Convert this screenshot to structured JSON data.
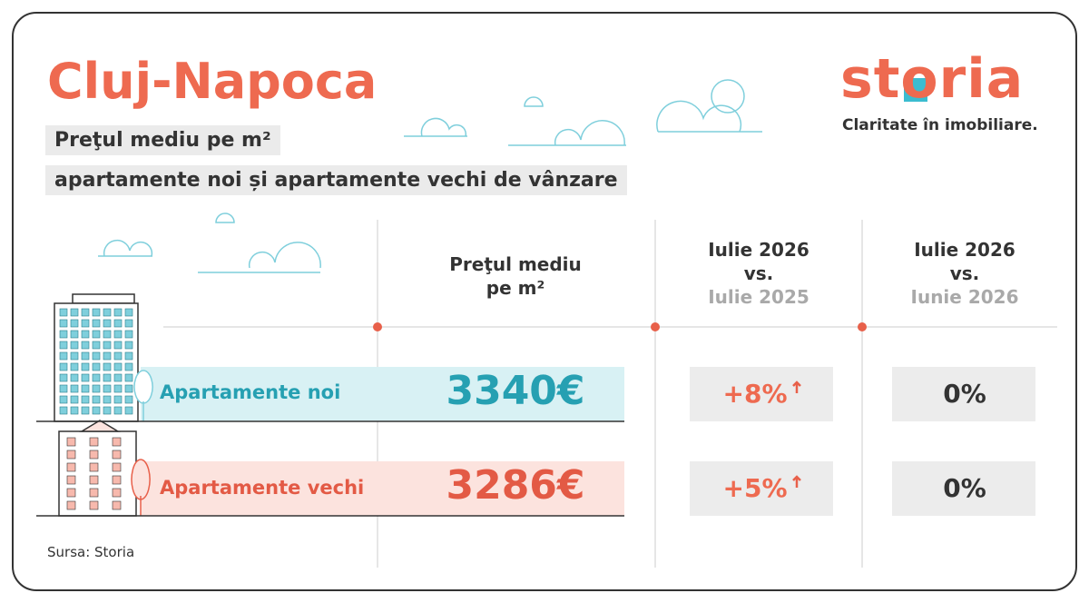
{
  "header": {
    "title": "Cluj-Napoca",
    "subtitle": [
      "Preţul mediu pe m²",
      "apartamente noi și apartamente vechi de vânzare"
    ]
  },
  "logo": {
    "name": "storia",
    "tagline": "Claritate în imobiliare."
  },
  "table": {
    "columns": [
      [
        "Preţul mediu",
        "pe m²"
      ],
      [
        "Iulie 2026",
        "vs.",
        "Iulie 2025"
      ],
      [
        "Iulie 2026",
        "vs.",
        "Iunie 2026"
      ]
    ],
    "rows": [
      [
        "Apartamente noi",
        "3340€",
        "+8%",
        "0%"
      ],
      [
        "Apartamente vechi",
        "3286€",
        "+5%",
        "0%"
      ]
    ]
  },
  "source": "Sursa: Storia"
}
